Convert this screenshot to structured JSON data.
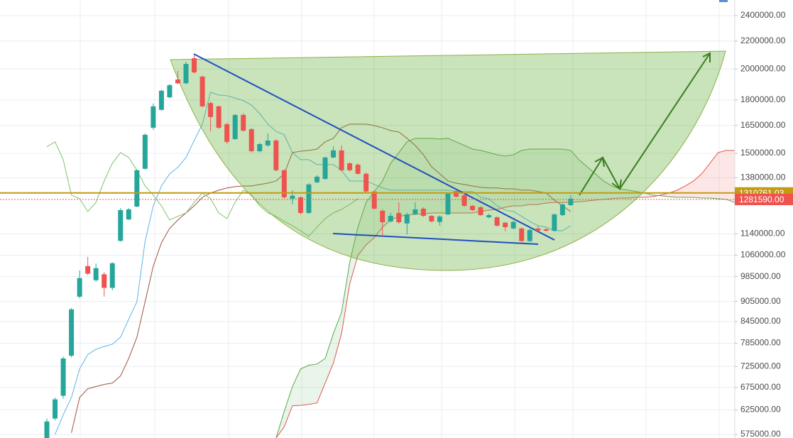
{
  "chart_data": {
    "type": "candlestick",
    "log_scale": true,
    "grid": true,
    "ylim": [
      568000,
      2531000
    ],
    "yticks": [
      {
        "value": 2400000,
        "label": "2400000.00"
      },
      {
        "value": 2200000,
        "label": "2200000.00"
      },
      {
        "value": 2000000,
        "label": "2000000.00"
      },
      {
        "value": 1800000,
        "label": "1800000.00"
      },
      {
        "value": 1650000,
        "label": "1650000.00"
      },
      {
        "value": 1500000,
        "label": "1500000.00"
      },
      {
        "value": 1380000,
        "label": "1380000.00"
      },
      {
        "value": 1140000,
        "label": "1140000.00"
      },
      {
        "value": 1060000,
        "label": "1060000.00"
      },
      {
        "value": 985000,
        "label": "985000.00"
      },
      {
        "value": 905000,
        "label": "905000.00"
      },
      {
        "value": 845000,
        "label": "845000.00"
      },
      {
        "value": 785000,
        "label": "785000.00"
      },
      {
        "value": 725000,
        "label": "725000.00"
      },
      {
        "value": 675000,
        "label": "675000.00"
      },
      {
        "value": 625000,
        "label": "625000.00"
      },
      {
        "value": 575000,
        "label": "575000.00"
      }
    ],
    "categories": [
      null,
      null,
      null,
      null,
      null,
      null,
      null,
      null,
      null,
      null,
      null,
      null,
      null,
      null,
      null,
      null,
      null,
      null,
      null,
      null,
      null,
      null,
      null,
      null,
      null,
      null,
      null,
      null,
      null,
      null,
      null,
      null,
      null,
      null,
      null,
      null,
      null,
      null,
      null,
      null,
      null,
      null,
      null,
      null,
      null,
      null,
      null,
      null,
      null,
      null,
      null,
      null,
      null,
      null,
      null,
      null,
      null,
      null,
      null,
      null,
      null,
      null,
      null,
      null,
      null,
      null,
      null,
      null,
      null,
      null,
      null,
      null,
      null,
      null,
      null,
      null,
      null,
      null,
      null,
      null,
      null,
      null,
      null,
      null,
      null
    ],
    "candles": {
      "up_color": "#26a69a",
      "down_color": "#ef5350",
      "open": [
        568000,
        607000,
        656000,
        752000,
        920000,
        1021000,
        973000,
        993000,
        948000,
        1113000,
        1197000,
        1251000,
        1423000,
        1637000,
        1740000,
        1816000,
        1930000,
        1905000,
        2075000,
        1949000,
        1781000,
        1761000,
        1657000,
        1575000,
        1710000,
        1629000,
        1511000,
        1541000,
        1567000,
        1416000,
        1285000,
        1291000,
        1224000,
        1359000,
        1375000,
        1479000,
        1515000,
        1450000,
        1443000,
        1399000,
        1317000,
        1233000,
        1189000,
        1224000,
        1181000,
        1218000,
        1242000,
        1212000,
        1187000,
        1218000,
        1317000,
        1300000,
        1254000,
        1248000,
        1206000,
        1206000,
        1184000,
        1161000,
        1161000,
        1112000,
        1161000,
        1158000,
        1152000,
        1215000,
        1257000,
        null,
        null,
        null,
        null,
        null,
        null,
        null,
        null,
        null,
        null,
        null,
        null,
        null,
        null,
        null,
        null,
        null,
        null,
        null,
        null
      ],
      "high": [
        607000,
        652000,
        750000,
        885000,
        1006000,
        1054000,
        1030000,
        1000000,
        1035000,
        1245000,
        1245000,
        1420000,
        1605000,
        1779000,
        1865000,
        1900000,
        1987000,
        2050000,
        2100000,
        1955000,
        1790000,
        1765000,
        1665000,
        1715000,
        1720000,
        1635000,
        1555000,
        1606000,
        1575000,
        1420000,
        1323000,
        1295000,
        1355000,
        1392000,
        1483000,
        1537000,
        1541000,
        1455000,
        1450000,
        1405000,
        1320000,
        1240000,
        1225000,
        1269000,
        1225000,
        1269000,
        1248000,
        1215000,
        1215000,
        1312000,
        1322000,
        1305000,
        1258000,
        1252000,
        1220000,
        1210000,
        1187000,
        1192000,
        1165000,
        1160000,
        1170000,
        1162000,
        1222000,
        1265000,
        1301000,
        null,
        null,
        null,
        null,
        null,
        null,
        null,
        null,
        null,
        null,
        null,
        null,
        null,
        null,
        null,
        null,
        null,
        null,
        null,
        null
      ],
      "low": [
        562000,
        603000,
        650000,
        748000,
        915000,
        990000,
        968000,
        920000,
        940000,
        1110000,
        1195000,
        1248000,
        1420000,
        1625000,
        1735000,
        1810000,
        1900000,
        1900000,
        1970000,
        1755000,
        1617000,
        1630000,
        1550000,
        1570000,
        1615000,
        1505000,
        1505000,
        1535000,
        1410000,
        1285000,
        1261000,
        1218000,
        1220000,
        1355000,
        1370000,
        1475000,
        1410000,
        1410000,
        1395000,
        1313000,
        1238000,
        1130000,
        1185000,
        1180000,
        1138000,
        1215000,
        1208000,
        1185000,
        1172000,
        1214000,
        1290000,
        1250000,
        1232000,
        1212000,
        1202000,
        1168000,
        1150000,
        1157000,
        1108000,
        1108000,
        1148000,
        1149000,
        1148000,
        1212000,
        1254000,
        null,
        null,
        null,
        null,
        null,
        null,
        null,
        null,
        null,
        null,
        null,
        null,
        null,
        null,
        null,
        null,
        null,
        null,
        null,
        null
      ],
      "close": [
        601000,
        648000,
        745000,
        881000,
        980000,
        995000,
        1014000,
        948000,
        1031000,
        1236000,
        1239000,
        1416000,
        1598000,
        1761000,
        1857000,
        1893000,
        1905000,
        2035000,
        1977000,
        1761000,
        1698000,
        1637000,
        1560000,
        1710000,
        1621000,
        1511000,
        1548000,
        1567000,
        1416000,
        1291000,
        1298000,
        1224000,
        1349000,
        1385000,
        1479000,
        1515000,
        1416000,
        1416000,
        1399000,
        1317000,
        1242000,
        1186000,
        1212000,
        1186000,
        1218000,
        1239000,
        1212000,
        1189000,
        1209000,
        1307000,
        1294000,
        1254000,
        1236000,
        1215000,
        1215000,
        1172000,
        1166000,
        1187000,
        1112000,
        1155000,
        1152000,
        1152000,
        1218000,
        1260000,
        1285000,
        null,
        null,
        null,
        null,
        null,
        null,
        null,
        null,
        null,
        null,
        null,
        null,
        null,
        null,
        null,
        null,
        null,
        null,
        null,
        null
      ]
    },
    "series": [
      {
        "color": "#5ab4e5",
        "values": [
          null,
          575000,
          615000,
          652000,
          719000,
          755000,
          769000,
          776000,
          782000,
          801000,
          852000,
          904000,
          1111000,
          1254000,
          1342000,
          1399000,
          1430000,
          1479000,
          1567000,
          1657000,
          1848000,
          1830000,
          1826000,
          1812000,
          1795000,
          1769000,
          1718000,
          1657000,
          1617000,
          1598000,
          1504000,
          1468000,
          1468000,
          1444000,
          1444000,
          1444000,
          1416000,
          1365000,
          1365000,
          1365000,
          1349000,
          1333000,
          1323000,
          1323000,
          1323000,
          1323000,
          1323000,
          1323000,
          1323000,
          1323000,
          1317000,
          1317000,
          1317000,
          1291000,
          1285000,
          1254000,
          1236000,
          1230000,
          1210000,
          1189000,
          1172000,
          1166000,
          1152000,
          1152000,
          1172000,
          null,
          null,
          null,
          null,
          null,
          null,
          null,
          null,
          null,
          null,
          null,
          null,
          null,
          null,
          null,
          null,
          null,
          null,
          null,
          null
        ]
      },
      {
        "color": "#a0523f",
        "values": [
          null,
          null,
          null,
          578000,
          652000,
          672000,
          677000,
          682000,
          685000,
          702000,
          745000,
          801000,
          904000,
          1021000,
          1106000,
          1161000,
          1195000,
          1224000,
          1254000,
          1291000,
          1310000,
          1323000,
          1333000,
          1339000,
          1342000,
          1342000,
          1349000,
          1355000,
          1365000,
          1399000,
          1504000,
          1511000,
          1515000,
          1522000,
          1560000,
          1579000,
          1637000,
          1657000,
          1657000,
          1657000,
          1649000,
          1637000,
          1621000,
          1613000,
          1579000,
          1541000,
          1493000,
          1433000,
          1399000,
          1365000,
          1355000,
          1349000,
          1342000,
          1336000,
          1333000,
          1333000,
          1329000,
          1329000,
          1323000,
          1323000,
          1317000,
          1310000,
          1279000,
          1254000,
          1230000,
          null,
          null,
          null,
          null,
          null,
          null,
          null,
          null,
          null,
          null,
          null,
          null,
          null,
          null,
          null,
          null,
          null,
          null,
          null,
          null
        ]
      },
      {
        "color": "#5fa548",
        "values": [
          null,
          null,
          null,
          null,
          null,
          null,
          null,
          null,
          null,
          null,
          null,
          null,
          null,
          null,
          null,
          null,
          null,
          null,
          null,
          null,
          null,
          null,
          null,
          null,
          null,
          null,
          null,
          null,
          568000,
          622000,
          677000,
          719000,
          728000,
          731000,
          745000,
          811000,
          872000,
          1034000,
          1166000,
          1269000,
          1317000,
          1365000,
          1450000,
          1504000,
          1560000,
          1579000,
          1579000,
          1579000,
          1575000,
          1579000,
          1560000,
          1541000,
          1522000,
          1515000,
          1504000,
          1493000,
          1486000,
          1493000,
          1515000,
          1522000,
          1522000,
          1522000,
          1522000,
          1522000,
          1515000,
          1468000,
          1433000,
          1399000,
          1365000,
          1342000,
          1329000,
          1323000,
          1317000,
          1310000,
          1301000,
          1298000,
          1294000,
          1291000,
          1291000,
          1291000,
          1288000,
          1288000,
          1285000,
          1282000,
          1269000
        ]
      },
      {
        "color": "#e0574f",
        "values": [
          null,
          null,
          null,
          null,
          null,
          null,
          null,
          null,
          null,
          null,
          null,
          null,
          null,
          null,
          null,
          null,
          null,
          null,
          null,
          null,
          null,
          null,
          null,
          null,
          null,
          null,
          null,
          null,
          568000,
          590000,
          634000,
          635000,
          637000,
          640000,
          685000,
          733000,
          811000,
          961000,
          1059000,
          1098000,
          1125000,
          1166000,
          1195000,
          1210000,
          1215000,
          1219000,
          1219000,
          1224000,
          1224000,
          1224000,
          1224000,
          1224000,
          1224000,
          1230000,
          1236000,
          1239000,
          1248000,
          1254000,
          1254000,
          1260000,
          1260000,
          1266000,
          1269000,
          1269000,
          1269000,
          1272000,
          1275000,
          1279000,
          1282000,
          1285000,
          1288000,
          1288000,
          1291000,
          1291000,
          1294000,
          1301000,
          1310000,
          1323000,
          1342000,
          1365000,
          1399000,
          1450000,
          1504000,
          1515000,
          1515000
        ]
      },
      {
        "color": "#7cc36a",
        "values": [
          1534000,
          1560000,
          1468000,
          1301000,
          1285000,
          1230000,
          1269000,
          1365000,
          1450000,
          1504000,
          1479000,
          1416000,
          1342000,
          1301000,
          1254000,
          1195000,
          1210000,
          1224000,
          1269000,
          1310000,
          1285000,
          1224000,
          1201000,
          1269000,
          1323000,
          1301000,
          1254000,
          1224000,
          1210000,
          1189000,
          1172000,
          1152000,
          1130000,
          1166000,
          1201000,
          1224000,
          1239000,
          1260000,
          1285000,
          null,
          null,
          null,
          null,
          null,
          null,
          null,
          null,
          null,
          null,
          null,
          null,
          null,
          null,
          null,
          null,
          null,
          null,
          null,
          null,
          null,
          null,
          null,
          null,
          null,
          null,
          null,
          null,
          null,
          null,
          null,
          null,
          null,
          null,
          null,
          null,
          null,
          null,
          null,
          null,
          null,
          null,
          null,
          null,
          null,
          null
        ]
      }
    ],
    "price_lines": [
      {
        "value": 1310761.03,
        "label": "1310761.03",
        "color": "#c49a12",
        "line_style": "solid"
      },
      {
        "value": 1281590,
        "label": "1281590.00",
        "color": "#ef5350",
        "line_style": "dotted"
      }
    ]
  }
}
